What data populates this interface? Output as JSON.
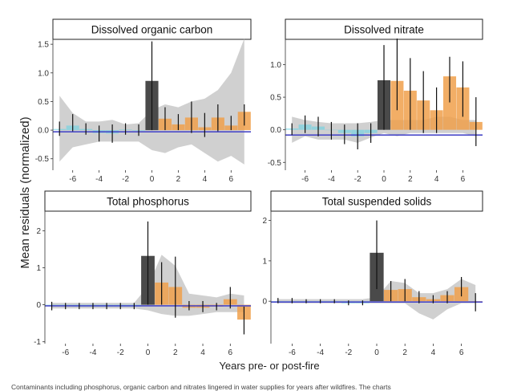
{
  "figure": {
    "ylabel": "Mean residuals (normalized)",
    "xlabel": "Years pre- or post-fire",
    "caption": "Contaminants including phosphorus, organic carbon and nitrates lingered in water supplies for years after wildfires. The charts"
  },
  "colors": {
    "pre_fire": "#5fd3e6",
    "fire_year": "#4a4a4a",
    "post_fire": "#f0a04b",
    "band": "#c8c8c8",
    "baseline": "#4a4ac8",
    "errorbar": "#111111"
  },
  "chart_data": [
    {
      "type": "bar",
      "title": "Dissolved organic carbon",
      "x": [
        -7,
        -6,
        -5,
        -4,
        -3,
        -2,
        -1,
        0,
        1,
        2,
        3,
        4,
        5,
        6,
        7
      ],
      "values": [
        0.02,
        0.08,
        0.02,
        -0.05,
        -0.06,
        0.01,
        -0.01,
        0.86,
        0.2,
        0.1,
        0.22,
        0.05,
        0.22,
        0.08,
        0.32
      ],
      "err_low": [
        -0.1,
        -0.02,
        -0.08,
        -0.2,
        -0.22,
        -0.08,
        -0.1,
        0.0,
        0.0,
        0.0,
        -0.05,
        -0.12,
        -0.02,
        0.0,
        0.08
      ],
      "err_high": [
        0.15,
        0.28,
        0.12,
        0.08,
        0.1,
        0.12,
        0.1,
        1.55,
        0.4,
        0.28,
        0.5,
        0.3,
        0.45,
        0.25,
        0.45
      ],
      "band_low": [
        -0.55,
        -0.3,
        -0.25,
        -0.2,
        -0.2,
        -0.2,
        -0.2,
        -0.35,
        -0.4,
        -0.3,
        -0.25,
        -0.4,
        -0.55,
        -0.45,
        -0.6
      ],
      "band_high": [
        0.6,
        0.3,
        0.15,
        0.15,
        0.18,
        0.1,
        0.12,
        0.35,
        0.45,
        0.4,
        0.5,
        0.55,
        0.7,
        1.0,
        1.6
      ],
      "ylim": [
        -0.7,
        1.6
      ],
      "xlim": [
        -7.5,
        7.5
      ],
      "yticks": [
        -0.5,
        0.0,
        0.5,
        1.0,
        1.5
      ],
      "ytick_labels": [
        "-0.5",
        "0.0",
        "0.5",
        "1.0",
        "1.5"
      ],
      "xticks": [
        -6,
        -4,
        -2,
        0,
        2,
        4,
        6
      ],
      "xtick_labels": [
        "-6",
        "-4",
        "-2",
        "0",
        "2",
        "4",
        "6"
      ],
      "baseline": -0.03,
      "grid": false
    },
    {
      "type": "bar",
      "title": "Dissolved nitrate",
      "x": [
        -7,
        -6,
        -5,
        -4,
        -3,
        -2,
        -1,
        0,
        1,
        2,
        3,
        4,
        5,
        6,
        7
      ],
      "values": [
        0.02,
        0.08,
        0.05,
        0.0,
        -0.05,
        -0.1,
        -0.05,
        0.76,
        0.75,
        0.6,
        0.45,
        0.3,
        0.82,
        0.65,
        0.12
      ],
      "err_low": [
        -0.08,
        -0.05,
        -0.1,
        -0.15,
        -0.22,
        -0.3,
        -0.2,
        0.0,
        0.3,
        0.0,
        -0.05,
        -0.05,
        0.42,
        0.2,
        -0.25
      ],
      "err_high": [
        0.1,
        0.22,
        0.2,
        0.12,
        0.08,
        0.1,
        0.1,
        1.3,
        1.4,
        1.1,
        0.9,
        0.65,
        1.12,
        1.05,
        0.5
      ],
      "band_low": [
        -0.2,
        -0.1,
        -0.15,
        -0.15,
        -0.15,
        -0.2,
        -0.12,
        -0.05,
        -0.1,
        -0.05,
        -0.05,
        -0.05,
        -0.05,
        -0.05,
        -0.1
      ],
      "band_high": [
        0.2,
        0.15,
        0.12,
        0.1,
        0.1,
        0.1,
        0.12,
        0.15,
        0.15,
        0.15,
        0.15,
        0.2,
        0.2,
        0.15,
        0.15
      ],
      "ylim": [
        -0.62,
        1.4
      ],
      "xlim": [
        -7.5,
        7.5
      ],
      "yticks": [
        -0.5,
        0.0,
        0.5,
        1.0
      ],
      "ytick_labels": [
        "-0.5",
        "0.0",
        "0.5",
        "1.0"
      ],
      "xticks": [
        -6,
        -4,
        -2,
        0,
        2,
        4,
        6
      ],
      "xtick_labels": [
        "-6",
        "-4",
        "-2",
        "0",
        "2",
        "4",
        "6"
      ],
      "baseline": -0.08,
      "grid": false
    },
    {
      "type": "bar",
      "title": "Total phosphorus",
      "x": [
        -7,
        -6,
        -5,
        -4,
        -3,
        -2,
        -1,
        0,
        1,
        2,
        3,
        4,
        5,
        6,
        7
      ],
      "values": [
        -0.03,
        -0.03,
        -0.05,
        -0.05,
        -0.05,
        -0.05,
        -0.05,
        1.32,
        0.6,
        0.48,
        -0.08,
        -0.08,
        -0.05,
        0.15,
        -0.4
      ],
      "err_low": [
        -0.15,
        -0.12,
        -0.12,
        -0.12,
        -0.12,
        -0.12,
        -0.12,
        0.0,
        0.0,
        -0.35,
        -0.15,
        -0.2,
        -0.15,
        -0.1,
        -0.8
      ],
      "err_high": [
        0.08,
        0.05,
        0.05,
        0.05,
        0.05,
        0.05,
        0.05,
        2.25,
        1.15,
        1.3,
        0.1,
        0.1,
        0.05,
        0.48,
        -0.05
      ],
      "band_low": [
        -0.1,
        -0.1,
        -0.1,
        -0.1,
        -0.1,
        -0.1,
        -0.1,
        -0.15,
        -0.25,
        -0.3,
        -0.3,
        -0.25,
        -0.2,
        -0.2,
        -0.2
      ],
      "band_high": [
        0.05,
        0.05,
        0.05,
        0.05,
        0.05,
        0.05,
        0.05,
        0.5,
        1.35,
        1.05,
        0.3,
        0.25,
        0.2,
        0.3,
        0.25
      ],
      "ylim": [
        -1.05,
        2.55
      ],
      "xlim": [
        -7.5,
        7.5
      ],
      "yticks": [
        -1,
        0,
        1,
        2
      ],
      "ytick_labels": [
        "-1",
        "0",
        "1",
        "2"
      ],
      "xticks": [
        -6,
        -4,
        -2,
        0,
        2,
        4,
        6
      ],
      "xtick_labels": [
        "-6",
        "-4",
        "-2",
        "0",
        "2",
        "4",
        "6"
      ],
      "baseline": -0.03,
      "grid": false
    },
    {
      "type": "bar",
      "title": "Total suspended solids",
      "x": [
        -7,
        -6,
        -5,
        -4,
        -3,
        -2,
        -1,
        0,
        1,
        2,
        3,
        4,
        5,
        6,
        7
      ],
      "values": [
        0.0,
        0.0,
        0.0,
        0.0,
        0.0,
        -0.05,
        -0.05,
        1.2,
        0.28,
        0.3,
        0.1,
        0.05,
        0.15,
        0.35,
        0.0
      ],
      "err_low": [
        -0.05,
        -0.05,
        -0.05,
        -0.05,
        -0.05,
        -0.1,
        -0.1,
        0.3,
        0.0,
        0.0,
        -0.05,
        -0.05,
        -0.05,
        0.12,
        -0.25
      ],
      "err_high": [
        0.08,
        0.08,
        0.05,
        0.05,
        0.05,
        0.02,
        0.02,
        2.0,
        0.5,
        0.55,
        0.25,
        0.15,
        0.25,
        0.6,
        0.2
      ],
      "band_low": [
        -0.05,
        -0.05,
        -0.05,
        -0.05,
        -0.05,
        -0.05,
        -0.05,
        -0.05,
        -0.05,
        -0.05,
        -0.3,
        -0.45,
        -0.2,
        -0.05,
        -0.05
      ],
      "band_high": [
        0.05,
        0.05,
        0.05,
        0.05,
        0.05,
        0.05,
        0.05,
        0.1,
        0.5,
        0.45,
        0.2,
        0.2,
        0.3,
        0.55,
        0.4
      ],
      "ylim": [
        -1.05,
        2.25
      ],
      "xlim": [
        -7.5,
        7.5
      ],
      "yticks": [
        0,
        1,
        2
      ],
      "ytick_labels": [
        "0",
        "1",
        "2"
      ],
      "xticks": [
        -6,
        -4,
        -2,
        0,
        2,
        4,
        6
      ],
      "xtick_labels": [
        "-6",
        "-4",
        "-2",
        "0",
        "2",
        "4",
        "6"
      ],
      "baseline": -0.02,
      "grid": false
    }
  ]
}
